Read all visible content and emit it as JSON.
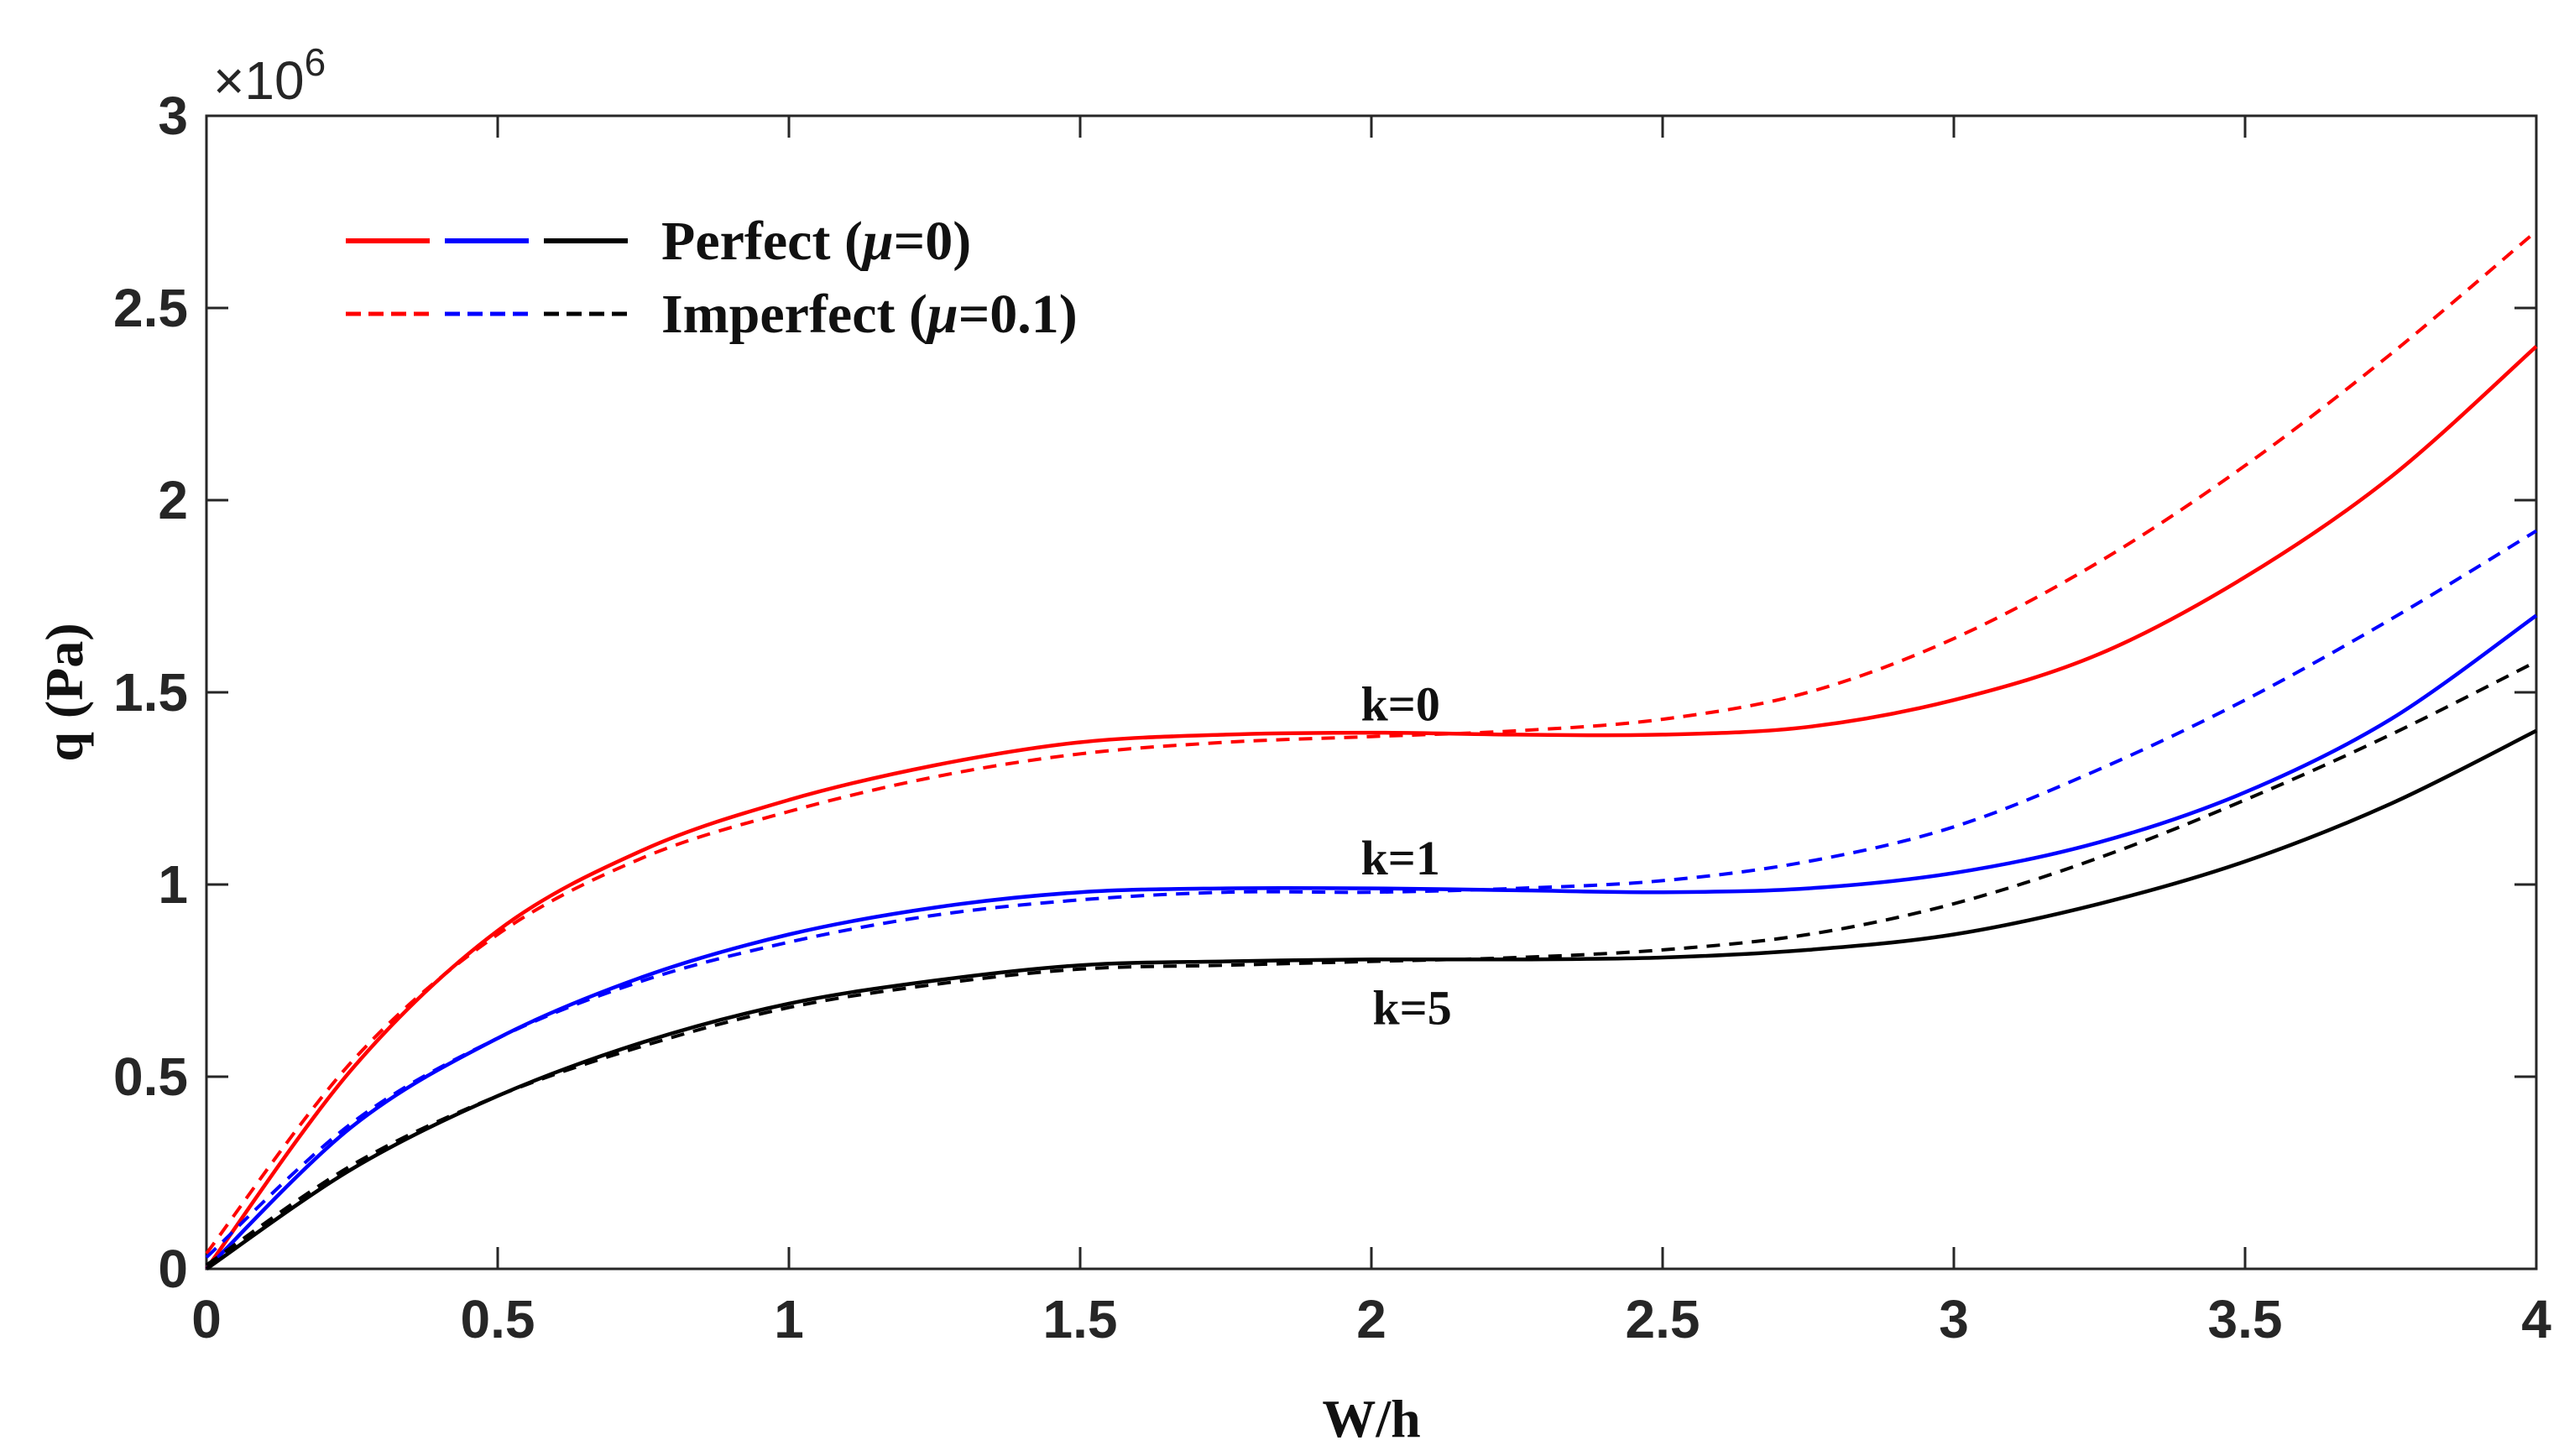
{
  "chart_data": {
    "type": "line",
    "title": "",
    "xlabel": "W/h",
    "ylabel": "q (Pa)",
    "y_scale_label": "×10",
    "y_scale_exponent": "6",
    "xlim": [
      0,
      4
    ],
    "ylim": [
      0,
      3
    ],
    "x_ticks": [
      0,
      0.5,
      1,
      1.5,
      2,
      2.5,
      3,
      3.5,
      4
    ],
    "x_tick_labels": [
      "0",
      "0.5",
      "1",
      "1.5",
      "2",
      "2.5",
      "3",
      "3.5",
      "4"
    ],
    "y_ticks": [
      0,
      0.5,
      1,
      1.5,
      2,
      2.5,
      3
    ],
    "y_tick_labels": [
      "0",
      "0.5",
      "1",
      "1.5",
      "2",
      "2.5",
      "3"
    ],
    "grid": false,
    "x": [
      0,
      0.25,
      0.5,
      0.75,
      1,
      1.25,
      1.5,
      1.75,
      2,
      2.25,
      2.5,
      2.75,
      3,
      3.25,
      3.5,
      3.75,
      4
    ],
    "series": [
      {
        "name": "k=0 Perfect (μ=0)",
        "color": "#ff0000",
        "style": "solid",
        "values": [
          0.0,
          0.52,
          0.88,
          1.09,
          1.22,
          1.31,
          1.37,
          1.39,
          1.395,
          1.39,
          1.39,
          1.41,
          1.48,
          1.6,
          1.8,
          2.06,
          2.4
        ]
      },
      {
        "name": "k=0 Imperfect (μ=0.1)",
        "color": "#ff0000",
        "style": "dashed",
        "values": [
          0.04,
          0.54,
          0.87,
          1.07,
          1.19,
          1.28,
          1.34,
          1.37,
          1.385,
          1.4,
          1.43,
          1.5,
          1.64,
          1.84,
          2.09,
          2.38,
          2.7
        ]
      },
      {
        "name": "k=1 Perfect (μ=0)",
        "color": "#0000ff",
        "style": "solid",
        "values": [
          0.0,
          0.37,
          0.6,
          0.76,
          0.87,
          0.94,
          0.98,
          0.99,
          0.99,
          0.985,
          0.98,
          0.99,
          1.03,
          1.11,
          1.24,
          1.43,
          1.7
        ]
      },
      {
        "name": "k=1 Imperfect (μ=0.1)",
        "color": "#0000ff",
        "style": "dashed",
        "values": [
          0.03,
          0.38,
          0.6,
          0.75,
          0.85,
          0.92,
          0.96,
          0.98,
          0.98,
          0.99,
          1.01,
          1.06,
          1.15,
          1.3,
          1.48,
          1.69,
          1.92
        ]
      },
      {
        "name": "k=5 Perfect (μ=0)",
        "color": "#000000",
        "style": "solid",
        "values": [
          0.0,
          0.26,
          0.45,
          0.59,
          0.69,
          0.75,
          0.79,
          0.8,
          0.805,
          0.805,
          0.81,
          0.83,
          0.87,
          0.95,
          1.06,
          1.21,
          1.4
        ]
      },
      {
        "name": "k=5 Imperfect (μ=0.1)",
        "color": "#000000",
        "style": "dashed",
        "values": [
          0.01,
          0.27,
          0.45,
          0.58,
          0.68,
          0.74,
          0.78,
          0.79,
          0.8,
          0.81,
          0.83,
          0.87,
          0.95,
          1.07,
          1.22,
          1.39,
          1.58
        ]
      }
    ],
    "legend": {
      "placement": "top-left",
      "entries": [
        {
          "label_prefix": "Perfect (",
          "symbol": "μ",
          "label_suffix": "=0)",
          "style": "solid",
          "colors": [
            "#ff0000",
            "#0000ff",
            "#000000"
          ]
        },
        {
          "label_prefix": "Imperfect (",
          "symbol": "μ",
          "label_suffix": "=0.1)",
          "style": "dashed",
          "colors": [
            "#ff0000",
            "#0000ff",
            "#000000"
          ]
        }
      ]
    },
    "annotations": [
      {
        "text": "k=0",
        "x": 2.05,
        "y": 1.47
      },
      {
        "text": "k=1",
        "x": 2.05,
        "y": 1.07
      },
      {
        "text": "k=5",
        "x": 2.07,
        "y": 0.68
      }
    ]
  }
}
